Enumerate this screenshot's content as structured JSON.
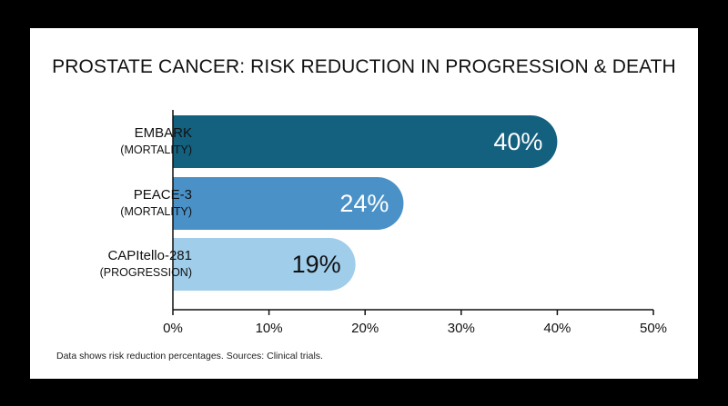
{
  "chart_data": {
    "type": "bar",
    "orientation": "horizontal",
    "title": "PROSTATE CANCER: RISK REDUCTION IN PROGRESSION & DEATH",
    "categories": [
      {
        "name": "EMBARK",
        "sub": "(MORTALITY)"
      },
      {
        "name": "PEACE-3",
        "sub": "(MORTALITY)"
      },
      {
        "name": "CAPItello-281",
        "sub": "(PROGRESSION)"
      }
    ],
    "values": [
      40,
      24,
      19
    ],
    "value_labels": [
      "40%",
      "24%",
      "19%"
    ],
    "bar_colors": [
      "#14607f",
      "#4a91c8",
      "#9fcdea"
    ],
    "label_colors": [
      "#ffffff",
      "#ffffff",
      "#111111"
    ],
    "xlim": [
      0,
      50
    ],
    "xticks": [
      "0%",
      "10%",
      "20%",
      "30%",
      "40%",
      "50%"
    ],
    "grid": false,
    "xlabel": "",
    "ylabel": ""
  },
  "footnote": "Data shows risk reduction percentages. Sources: Clinical trials."
}
